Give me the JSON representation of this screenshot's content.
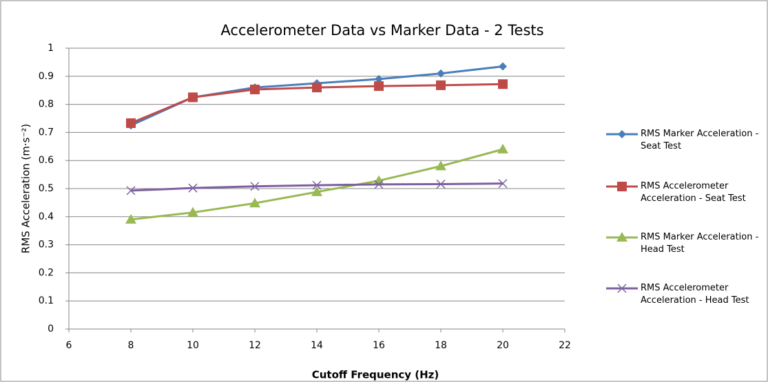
{
  "chart_data": {
    "type": "line",
    "title": "Accelerometer Data vs Marker Data - 2 Tests",
    "x_label": "Cutoff Frequency (Hz)",
    "y_label": "RMS Acceleration (m·s⁻²)",
    "x": [
      8,
      10,
      12,
      14,
      16,
      18,
      20
    ],
    "xlim": [
      6,
      22
    ],
    "xticks": [
      6,
      8,
      10,
      12,
      14,
      16,
      18,
      20,
      22
    ],
    "ylim": [
      0,
      1
    ],
    "yticks": [
      0,
      0.1,
      0.2,
      0.3,
      0.4,
      0.5,
      0.6,
      0.7,
      0.8,
      0.9,
      1
    ],
    "grid": true,
    "legend": "right",
    "series": [
      {
        "name": "RMS Marker Acceleration - Seat Test",
        "color": "#4a7ebb",
        "marker": "diamond",
        "values": [
          0.725,
          0.825,
          0.86,
          0.875,
          0.89,
          0.91,
          0.935
        ]
      },
      {
        "name": "RMS Accelerometer Acceleration - Seat Test",
        "color": "#be4b48",
        "marker": "square",
        "values": [
          0.733,
          0.825,
          0.853,
          0.86,
          0.865,
          0.868,
          0.872
        ]
      },
      {
        "name": "RMS Marker Acceleration - Head Test",
        "color": "#98b954",
        "marker": "triangle",
        "values": [
          0.39,
          0.415,
          0.448,
          0.488,
          0.528,
          0.58,
          0.64
        ]
      },
      {
        "name": "RMS Accelerometer Acceleration - Head Test",
        "color": "#7d60a0",
        "marker": "x",
        "values": [
          0.493,
          0.502,
          0.508,
          0.512,
          0.515,
          0.516,
          0.518
        ]
      }
    ]
  }
}
